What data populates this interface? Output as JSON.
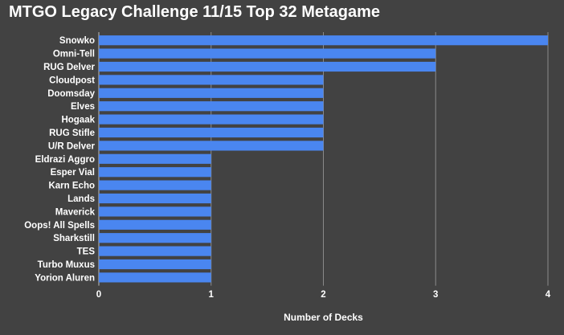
{
  "chart_data": {
    "type": "bar",
    "orientation": "horizontal",
    "title": "MTGO Legacy Challenge 11/15 Top 32 Metagame",
    "xlabel": "Number of Decks",
    "ylabel": "",
    "xlim": [
      0,
      4
    ],
    "xticks": [
      "0",
      "1",
      "2",
      "3",
      "4"
    ],
    "grid": true,
    "legend": "none",
    "categories": [
      "Snowko",
      "Omni-Tell",
      "RUG Delver",
      "Cloudpost",
      "Doomsday",
      "Elves",
      "Hogaak",
      "RUG Stifle",
      "U/R Delver",
      "Eldrazi Aggro",
      "Esper Vial",
      "Karn Echo",
      "Lands",
      "Maverick",
      "Oops! All Spells",
      "Sharkstill",
      "TES",
      "Turbo Muxus",
      "Yorion Aluren"
    ],
    "values": [
      4,
      3,
      3,
      2,
      2,
      2,
      2,
      2,
      2,
      1,
      1,
      1,
      1,
      1,
      1,
      1,
      1,
      1,
      1
    ]
  },
  "colors": {
    "background": "#424242",
    "bar": "#4a86f0",
    "gridline": "#8a8a8a",
    "text": "#ffffff"
  }
}
